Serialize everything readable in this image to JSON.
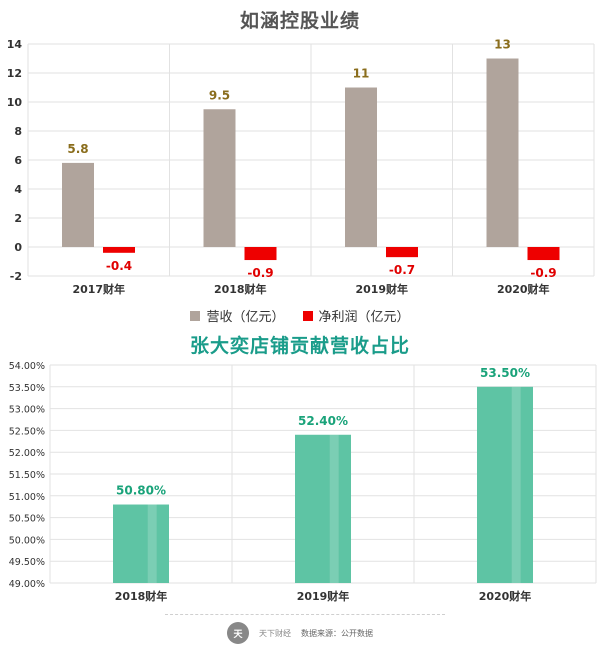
{
  "chart_data": [
    {
      "type": "bar",
      "title": "如涵控股业绩",
      "categories": [
        "2017财年",
        "2018财年",
        "2019财年",
        "2020财年"
      ],
      "series": [
        {
          "name": "营收（亿元）",
          "values": [
            5.8,
            9.5,
            11,
            13
          ],
          "color": "#b0a49c"
        },
        {
          "name": "净利润（亿元）",
          "values": [
            -0.4,
            -0.9,
            -0.7,
            -0.9
          ],
          "color": "#ee0000"
        }
      ],
      "data_labels": [
        [
          "5.8",
          "9.5",
          "11",
          "13"
        ],
        [
          "-0.4",
          "-0.9",
          "-0.7",
          "-0.9"
        ]
      ],
      "yticks": [
        "14",
        "12",
        "10",
        "8",
        "6",
        "4",
        "2",
        "0",
        "-2"
      ],
      "ylim": [
        -2,
        14
      ],
      "grid": true,
      "legend_position": "bottom"
    },
    {
      "type": "bar",
      "title": "张大奕店铺贡献营收占比",
      "categories": [
        "2018财年",
        "2019财年",
        "2020财年"
      ],
      "series": [
        {
          "values": [
            50.8,
            52.4,
            53.5
          ],
          "color": "#5ec4a4"
        }
      ],
      "data_labels": [
        "50.80%",
        "52.40%",
        "53.50%"
      ],
      "yticks": [
        "54.00%",
        "53.50%",
        "53.00%",
        "52.50%",
        "52.00%",
        "51.50%",
        "51.00%",
        "50.50%",
        "50.00%",
        "49.50%",
        "49.00%"
      ],
      "ylim": [
        49,
        54
      ],
      "grid": true
    }
  ],
  "footer": {
    "logo_text": "天",
    "brand": "天下财经",
    "source": "数据来源：公开数据"
  },
  "colors": {
    "revenue": "#b0a49c",
    "profit": "#ee0000",
    "share": "#5ec4a4",
    "label_gold": "#8a6d1c",
    "label_red": "#e00000",
    "label_green": "#1aa37a",
    "title2": "#1a9c8a"
  }
}
